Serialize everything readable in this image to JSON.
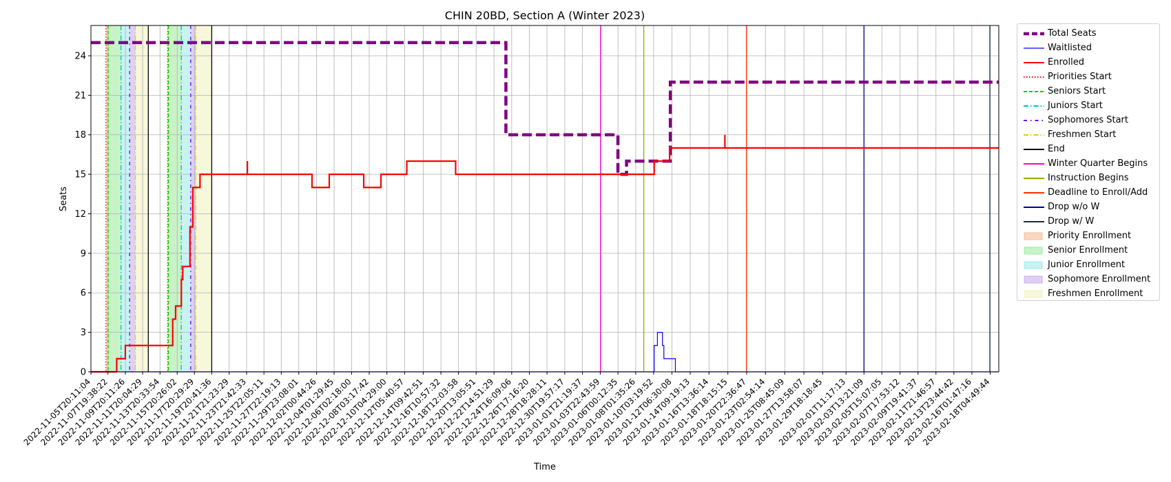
{
  "chart_data": {
    "type": "line",
    "title": "CHIN 20BD, Section A (Winter 2023)",
    "xlabel": "Time",
    "ylabel": "Seats",
    "ylim": [
      0,
      26.3
    ],
    "xlim": [
      "2022-11-05T20:11:04",
      "2023-02-19T04:49:44"
    ],
    "grid": true,
    "legend_position": "outside-right",
    "y_ticks": [
      0,
      3,
      6,
      9,
      12,
      15,
      18,
      21,
      24
    ],
    "x_tick_labels": [
      "2022-11-05T20:11:04",
      "2022-11-07T19:38:22",
      "2022-11-09T20:11:26",
      "2022-11-11T20:04:29",
      "2022-11-13T20:33:54",
      "2022-11-15T20:26:02",
      "2022-11-17T20:29:29",
      "2022-11-19T20:41:36",
      "2022-11-21T21:23:29",
      "2022-11-23T21:42:33",
      "2022-11-25T22:05:11",
      "2022-11-27T22:19:13",
      "2022-11-29T23:08:01",
      "2022-12-02T00:44:26",
      "2022-12-04T01:29:45",
      "2022-12-06T02:18:00",
      "2022-12-08T03:17:42",
      "2022-12-10T04:29:00",
      "2022-12-12T05:40:57",
      "2022-12-14T09:42:51",
      "2022-12-16T10:57:32",
      "2022-12-18T12:03:58",
      "2022-12-20T13:05:51",
      "2022-12-22T14:51:29",
      "2022-12-24T16:09:06",
      "2022-12-26T17:16:20",
      "2022-12-28T18:28:11",
      "2022-12-30T19:57:17",
      "2023-01-01T21:19:37",
      "2023-01-03T22:43:59",
      "2023-01-06T00:12:35",
      "2023-01-08T01:35:26",
      "2023-01-10T03:19:52",
      "2023-01-12T06:30:08",
      "2023-01-14T09:19:13",
      "2023-01-16T13:36:14",
      "2023-01-18T18:15:15",
      "2023-01-20T22:36:47",
      "2023-01-23T02:54:14",
      "2023-01-25T08:45:09",
      "2023-01-27T13:58:07",
      "2023-01-29T18:18:45",
      "2023-02-01T11:17:13",
      "2023-02-03T13:21:09",
      "2023-02-05T15:07:05",
      "2023-02-07T17:53:12",
      "2023-02-09T19:41:37",
      "2023-02-11T21:46:57",
      "2023-02-13T23:44:42",
      "2023-02-16T01:47:16",
      "2023-02-18T04:49:44"
    ],
    "series": [
      {
        "name": "Total Seats",
        "color": "#800080",
        "style": "dashed-thick",
        "points": [
          [
            "2022-11-05T20:11:04",
            25
          ],
          [
            "2022-12-24T00:00:00",
            25
          ],
          [
            "2022-12-24T00:00:00",
            18
          ],
          [
            "2023-01-06T00:00:00",
            18
          ],
          [
            "2023-01-06T00:00:00",
            15
          ],
          [
            "2023-01-07T00:00:00",
            15
          ],
          [
            "2023-01-07T00:00:00",
            16
          ],
          [
            "2023-01-12T02:00:00",
            16
          ],
          [
            "2023-01-12T02:00:00",
            22
          ],
          [
            "2023-02-19T04:49:44",
            22
          ]
        ]
      },
      {
        "name": "Waitlisted",
        "color": "#0000ff",
        "style": "solid-thin",
        "points": [
          [
            "2022-11-05T20:11:04",
            0
          ],
          [
            "2023-01-10T05:00:00",
            0
          ],
          [
            "2023-01-10T05:00:00",
            2
          ],
          [
            "2023-01-10T14:00:00",
            2
          ],
          [
            "2023-01-10T14:00:00",
            3
          ],
          [
            "2023-01-11T04:00:00",
            3
          ],
          [
            "2023-01-11T04:00:00",
            2
          ],
          [
            "2023-01-11T08:00:00",
            2
          ],
          [
            "2023-01-11T08:00:00",
            1
          ],
          [
            "2023-01-12T16:00:00",
            1
          ],
          [
            "2023-01-12T16:00:00",
            0
          ],
          [
            "2023-02-19T04:49:44",
            0
          ]
        ]
      },
      {
        "name": "Enrolled",
        "color": "#ff0000",
        "style": "solid",
        "points": [
          [
            "2022-11-05T20:11:04",
            0
          ],
          [
            "2022-11-08T20:00:00",
            0
          ],
          [
            "2022-11-08T20:00:00",
            1
          ],
          [
            "2022-11-09T20:00:00",
            1
          ],
          [
            "2022-11-09T20:00:00",
            2
          ],
          [
            "2022-11-15T08:00:00",
            2
          ],
          [
            "2022-11-15T08:00:00",
            4
          ],
          [
            "2022-11-15T16:00:00",
            4
          ],
          [
            "2022-11-15T16:00:00",
            5
          ],
          [
            "2022-11-16T08:00:00",
            5
          ],
          [
            "2022-11-16T08:00:00",
            7
          ],
          [
            "2022-11-16T12:00:00",
            7
          ],
          [
            "2022-11-16T12:00:00",
            8
          ],
          [
            "2022-11-17T08:00:00",
            8
          ],
          [
            "2022-11-17T08:00:00",
            11
          ],
          [
            "2022-11-17T16:00:00",
            11
          ],
          [
            "2022-11-17T16:00:00",
            14
          ],
          [
            "2022-11-18T12:00:00",
            14
          ],
          [
            "2022-11-18T12:00:00",
            15
          ],
          [
            "2022-11-24T00:00:00",
            15
          ],
          [
            "2022-11-24T00:00:00",
            16
          ],
          [
            "2022-11-24T00:00:00",
            15
          ],
          [
            "2022-12-01T12:00:00",
            15
          ],
          [
            "2022-12-01T12:00:00",
            14
          ],
          [
            "2022-12-03T12:00:00",
            14
          ],
          [
            "2022-12-03T12:00:00",
            15
          ],
          [
            "2022-12-07T12:00:00",
            15
          ],
          [
            "2022-12-07T12:00:00",
            14
          ],
          [
            "2022-12-09T12:00:00",
            14
          ],
          [
            "2022-12-09T12:00:00",
            15
          ],
          [
            "2022-12-12T12:00:00",
            15
          ],
          [
            "2022-12-12T12:00:00",
            16
          ],
          [
            "2022-12-18T04:00:00",
            16
          ],
          [
            "2022-12-18T04:00:00",
            15
          ],
          [
            "2023-01-10T05:00:00",
            15
          ],
          [
            "2023-01-10T05:00:00",
            16
          ],
          [
            "2023-01-12T00:00:00",
            16
          ],
          [
            "2023-01-12T00:00:00",
            17
          ],
          [
            "2023-01-18T10:00:00",
            17
          ],
          [
            "2023-01-18T10:00:00",
            18
          ],
          [
            "2023-01-18T10:00:00",
            17
          ],
          [
            "2023-02-19T04:49:44",
            17
          ]
        ]
      }
    ],
    "vertical_lines": [
      {
        "name": "Priorities Start",
        "color": "#ff0000",
        "style": "dotted",
        "x": [
          "2022-11-07T14:00:00",
          "2022-11-14T18:00:00"
        ]
      },
      {
        "name": "Seniors Start",
        "color": "#00cc00",
        "style": "dashed",
        "x": [
          "2022-11-07T20:00:00",
          "2022-11-14T20:00:00"
        ]
      },
      {
        "name": "Juniors Start",
        "color": "#00c0c0",
        "style": "dashdot",
        "x": [
          "2022-11-09T08:00:00",
          "2022-11-16T08:00:00"
        ]
      },
      {
        "name": "Sophomores Start",
        "color": "#6a00ff",
        "style": "dashdot2",
        "x": [
          "2022-11-10T08:00:00",
          "2022-11-17T10:00:00"
        ]
      },
      {
        "name": "Freshmen Start",
        "color": "#e0d000",
        "style": "dashdot",
        "x": [
          "2022-11-11T00:00:00",
          "2022-11-18T00:00:00"
        ]
      },
      {
        "name": "End",
        "color": "#000000",
        "style": "solid",
        "x": [
          "2022-11-12T12:00:00",
          "2022-11-19T20:41:36"
        ]
      },
      {
        "name": "Winter Quarter Begins",
        "color": "#ff00cc",
        "style": "solid",
        "x": [
          "2023-01-04T00:00:00"
        ]
      },
      {
        "name": "Instruction Begins",
        "color": "#88b000",
        "style": "solid",
        "x": [
          "2023-01-09T00:00:00"
        ]
      },
      {
        "name": "Deadline to Enroll/Add",
        "color": "#ff3300",
        "style": "solid",
        "x": [
          "2023-01-20T22:00:00"
        ]
      },
      {
        "name": "Drop w/o W",
        "color": "#000090",
        "style": "solid",
        "x": [
          "2023-02-03T13:21:09"
        ]
      },
      {
        "name": "Drop w/ W",
        "color": "#1a2a3a",
        "style": "solid",
        "x": [
          "2023-02-18T04:00:00"
        ]
      }
    ],
    "shaded_regions": [
      {
        "name": "Priority Enrollment",
        "color": "#f4b183",
        "spans": [
          [
            "2022-11-07T14:00:00",
            "2022-11-07T20:00:00"
          ],
          [
            "2022-11-14T18:00:00",
            "2022-11-14T20:00:00"
          ]
        ]
      },
      {
        "name": "Senior Enrollment",
        "color": "#90e890",
        "spans": [
          [
            "2022-11-07T20:00:00",
            "2022-11-09T08:00:00"
          ],
          [
            "2022-11-14T20:00:00",
            "2022-11-16T08:00:00"
          ]
        ]
      },
      {
        "name": "Junior Enrollment",
        "color": "#90e8e8",
        "spans": [
          [
            "2022-11-09T08:00:00",
            "2022-11-10T08:00:00"
          ],
          [
            "2022-11-16T08:00:00",
            "2022-11-17T10:00:00"
          ]
        ]
      },
      {
        "name": "Sophomore Enrollment",
        "color": "#c0a0e8",
        "spans": [
          [
            "2022-11-10T08:00:00",
            "2022-11-11T00:00:00"
          ],
          [
            "2022-11-17T10:00:00",
            "2022-11-18T00:00:00"
          ]
        ]
      },
      {
        "name": "Freshmen Enrollment",
        "color": "#f0f0b8",
        "spans": [
          [
            "2022-11-11T00:00:00",
            "2022-11-12T12:00:00"
          ],
          [
            "2022-11-18T00:00:00",
            "2022-11-19T20:41:36"
          ]
        ]
      }
    ],
    "legend": [
      {
        "label": "Total Seats",
        "kind": "line",
        "color": "#800080",
        "style": "dashed-thick"
      },
      {
        "label": "Waitlisted",
        "kind": "line",
        "color": "#0000ff",
        "style": "solid-thin"
      },
      {
        "label": "Enrolled",
        "kind": "line",
        "color": "#ff0000",
        "style": "solid"
      },
      {
        "label": "Priorities Start",
        "kind": "line",
        "color": "#ff0000",
        "style": "dotted"
      },
      {
        "label": "Seniors Start",
        "kind": "line",
        "color": "#00cc00",
        "style": "dashed"
      },
      {
        "label": "Juniors Start",
        "kind": "line",
        "color": "#00c0c0",
        "style": "dashdot"
      },
      {
        "label": "Sophomores Start",
        "kind": "line",
        "color": "#6a00ff",
        "style": "dashdot2"
      },
      {
        "label": "Freshmen Start",
        "kind": "line",
        "color": "#e0d000",
        "style": "dashdot"
      },
      {
        "label": "End",
        "kind": "line",
        "color": "#000000",
        "style": "solid"
      },
      {
        "label": "Winter Quarter Begins",
        "kind": "line",
        "color": "#ff00cc",
        "style": "solid"
      },
      {
        "label": "Instruction Begins",
        "kind": "line",
        "color": "#88b000",
        "style": "solid"
      },
      {
        "label": "Deadline to Enroll/Add",
        "kind": "line",
        "color": "#ff3300",
        "style": "solid"
      },
      {
        "label": "Drop w/o W",
        "kind": "line",
        "color": "#000090",
        "style": "solid"
      },
      {
        "label": "Drop w/ W",
        "kind": "line",
        "color": "#1a2a3a",
        "style": "solid"
      },
      {
        "label": "Priority Enrollment",
        "kind": "patch",
        "color": "#f4b183"
      },
      {
        "label": "Senior Enrollment",
        "kind": "patch",
        "color": "#90e890"
      },
      {
        "label": "Junior Enrollment",
        "kind": "patch",
        "color": "#90e8e8"
      },
      {
        "label": "Sophomore Enrollment",
        "kind": "patch",
        "color": "#c0a0e8"
      },
      {
        "label": "Freshmen Enrollment",
        "kind": "patch",
        "color": "#f0f0b8"
      }
    ]
  }
}
